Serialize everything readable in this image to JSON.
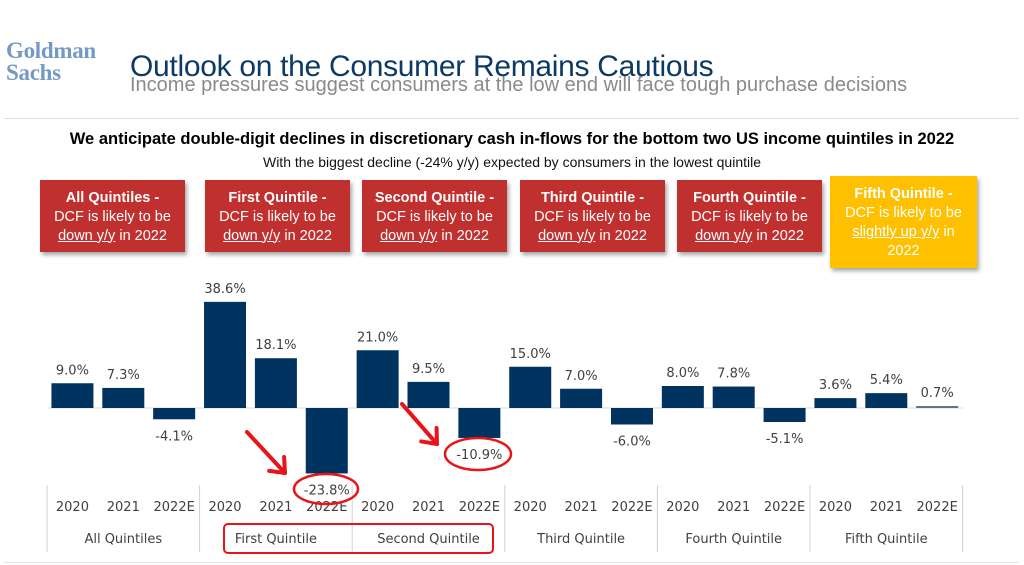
{
  "header": {
    "logo_line1": "Goldman",
    "logo_line2": "Sachs",
    "title": "Outlook on the Consumer Remains Cautious",
    "subtitle": "Income pressures suggest consumers at the low end will face tough purchase decisions"
  },
  "headline": "We anticipate double-digit declines in discretionary cash in-flows for the bottom two US income quintiles in 2022",
  "subheadline": "With the biggest decline (-24% y/y) expected by consumers in the lowest quintile",
  "callouts": [
    {
      "title": "All Quintiles -",
      "line1": "DCF is likely to be",
      "underlined": "down y/y",
      "tail": " in 2022",
      "color": "#c0302f"
    },
    {
      "title": "First Quintile -",
      "line1": "DCF is likely to be",
      "underlined": "down y/y",
      "tail": " in 2022",
      "color": "#c0302f"
    },
    {
      "title": "Second Quintile -",
      "line1": "DCF is likely to be",
      "underlined": "down y/y",
      "tail": " in 2022",
      "color": "#c0302f"
    },
    {
      "title": "Third Quintile -",
      "line1": "DCF is likely to be",
      "underlined": "down y/y",
      "tail": " in 2022",
      "color": "#c0302f"
    },
    {
      "title": "Fourth Quintile -",
      "line1": "DCF is likely to be",
      "underlined": "down y/y",
      "tail": " in 2022",
      "color": "#c0302f"
    },
    {
      "title": "Fifth Quintile -",
      "line1": "DCF is likely to be",
      "underlined": "slightly up y/y",
      "tail": " in",
      "line4": "2022",
      "color": "#ffc000"
    }
  ],
  "colors": {
    "bar": "#003360",
    "bar_small": "#5a7896",
    "highlight": "#e8141a",
    "label": "#404040",
    "gridline": "#d9d9d9"
  },
  "chart_data": {
    "type": "bar",
    "title": "",
    "xlabel": "",
    "ylabel": "",
    "ylim": [
      -26,
      40
    ],
    "grid": false,
    "legend": "none",
    "value_format": "percent_1dp",
    "groups": [
      {
        "name": "All Quintiles",
        "categories": [
          "2020",
          "2021",
          "2022E"
        ],
        "values": [
          9.0,
          7.3,
          -4.1
        ]
      },
      {
        "name": "First Quintile",
        "categories": [
          "2020",
          "2021",
          "2022E"
        ],
        "values": [
          38.6,
          18.1,
          -23.8
        ]
      },
      {
        "name": "Second Quintile",
        "categories": [
          "2020",
          "2021",
          "2022E"
        ],
        "values": [
          21.0,
          9.5,
          -10.9
        ]
      },
      {
        "name": "Third Quintile",
        "categories": [
          "2020",
          "2021",
          "2022E"
        ],
        "values": [
          15.0,
          7.0,
          -6.0
        ]
      },
      {
        "name": "Fourth Quintile",
        "categories": [
          "2020",
          "2021",
          "2022E"
        ],
        "values": [
          8.0,
          7.8,
          -5.1
        ]
      },
      {
        "name": "Fifth Quintile",
        "categories": [
          "2020",
          "2021",
          "2022E"
        ],
        "values": [
          3.6,
          5.4,
          0.7
        ]
      }
    ],
    "labels": [
      "9.0%",
      "7.3%",
      "-4.1%",
      "38.6%",
      "18.1%",
      "-23.8%",
      "21.0%",
      "9.5%",
      "-10.9%",
      "15.0%",
      "7.0%",
      "-6.0%",
      "8.0%",
      "7.8%",
      "-5.1%",
      "3.6%",
      "5.4%",
      "0.7%"
    ],
    "annotations": [
      {
        "type": "circle-with-arrow",
        "target": "First Quintile 2022E",
        "text": "-23.8%"
      },
      {
        "type": "circle-with-arrow",
        "target": "Second Quintile 2022E",
        "text": "-10.9%"
      },
      {
        "type": "box",
        "target": [
          "First Quintile",
          "Second Quintile"
        ]
      }
    ]
  }
}
